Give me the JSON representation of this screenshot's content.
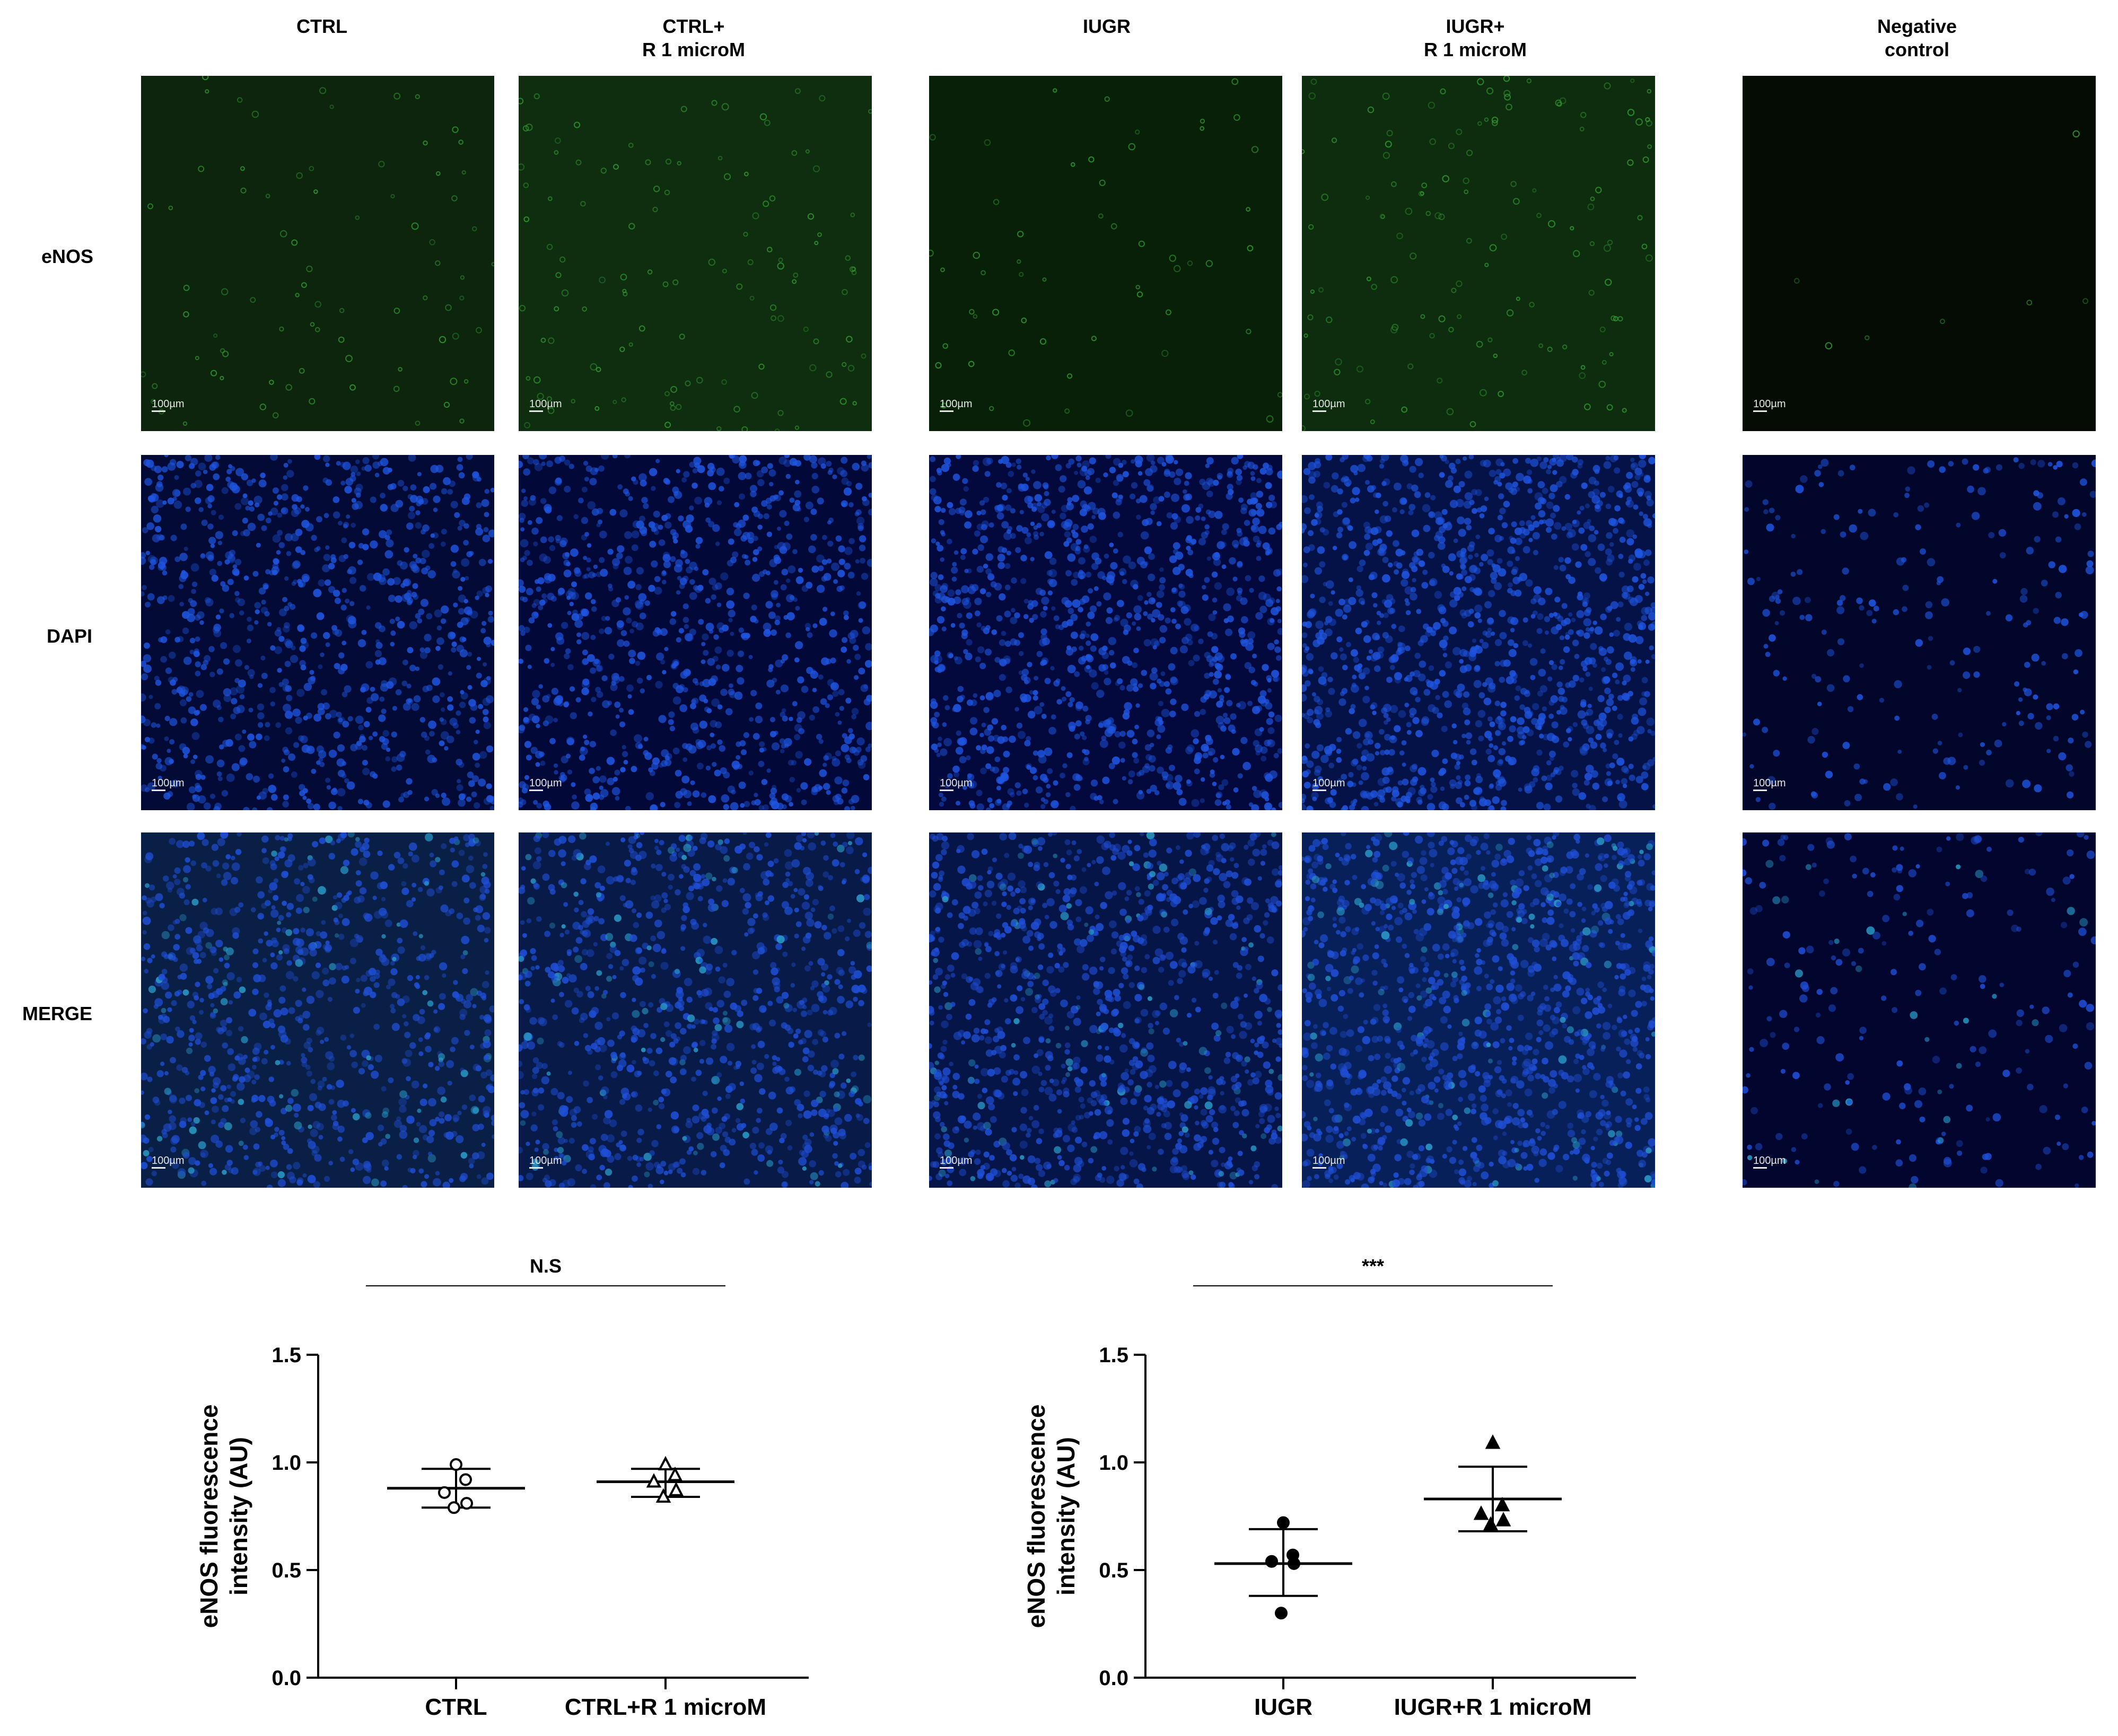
{
  "columns": [
    "CTRL",
    "CTRL+\nR 1 microM",
    "IUGR",
    "IUGR+\nR 1 microM",
    "Negative\ncontrol"
  ],
  "rows": [
    "eNOS",
    "DAPI",
    "MERGE"
  ],
  "scale_bar_label": "100µm",
  "colors": {
    "enos_green": "#1a6a1a",
    "dapi_blue": "#1f4fd6",
    "background_dark": "#02061e"
  },
  "chart_data": [
    {
      "type": "scatter",
      "categories": [
        "CTRL",
        "CTRL+R 1 microM"
      ],
      "ylabel": "eNOS fluorescence\nintensity (AU)",
      "ylim": [
        0.0,
        1.5
      ],
      "yticks": [
        "0.0",
        "0.5",
        "1.0",
        "1.5"
      ],
      "significance": "N.S",
      "series": [
        {
          "marker": "open-circle",
          "points": [
            0.99,
            0.92,
            0.86,
            0.81,
            0.79
          ],
          "mean": 0.88,
          "sd_upper": 0.97,
          "sd_lower": 0.79
        },
        {
          "marker": "open-triangle",
          "points": [
            0.99,
            0.94,
            0.91,
            0.87,
            0.84
          ],
          "mean": 0.91,
          "sd_upper": 0.97,
          "sd_lower": 0.84
        }
      ]
    },
    {
      "type": "scatter",
      "categories": [
        "IUGR",
        "IUGR+R 1 microM"
      ],
      "ylabel": "eNOS fluorescence\nintensity (AU)",
      "ylim": [
        0.0,
        1.5
      ],
      "yticks": [
        "0.0",
        "0.5",
        "1.0",
        "1.5"
      ],
      "significance": "***",
      "series": [
        {
          "marker": "filled-circle",
          "points": [
            0.72,
            0.57,
            0.54,
            0.53,
            0.3
          ],
          "mean": 0.53,
          "sd_upper": 0.69,
          "sd_lower": 0.38
        },
        {
          "marker": "filled-triangle",
          "points": [
            1.09,
            0.8,
            0.76,
            0.73,
            0.71
          ],
          "mean": 0.83,
          "sd_upper": 0.98,
          "sd_lower": 0.68
        }
      ]
    }
  ]
}
